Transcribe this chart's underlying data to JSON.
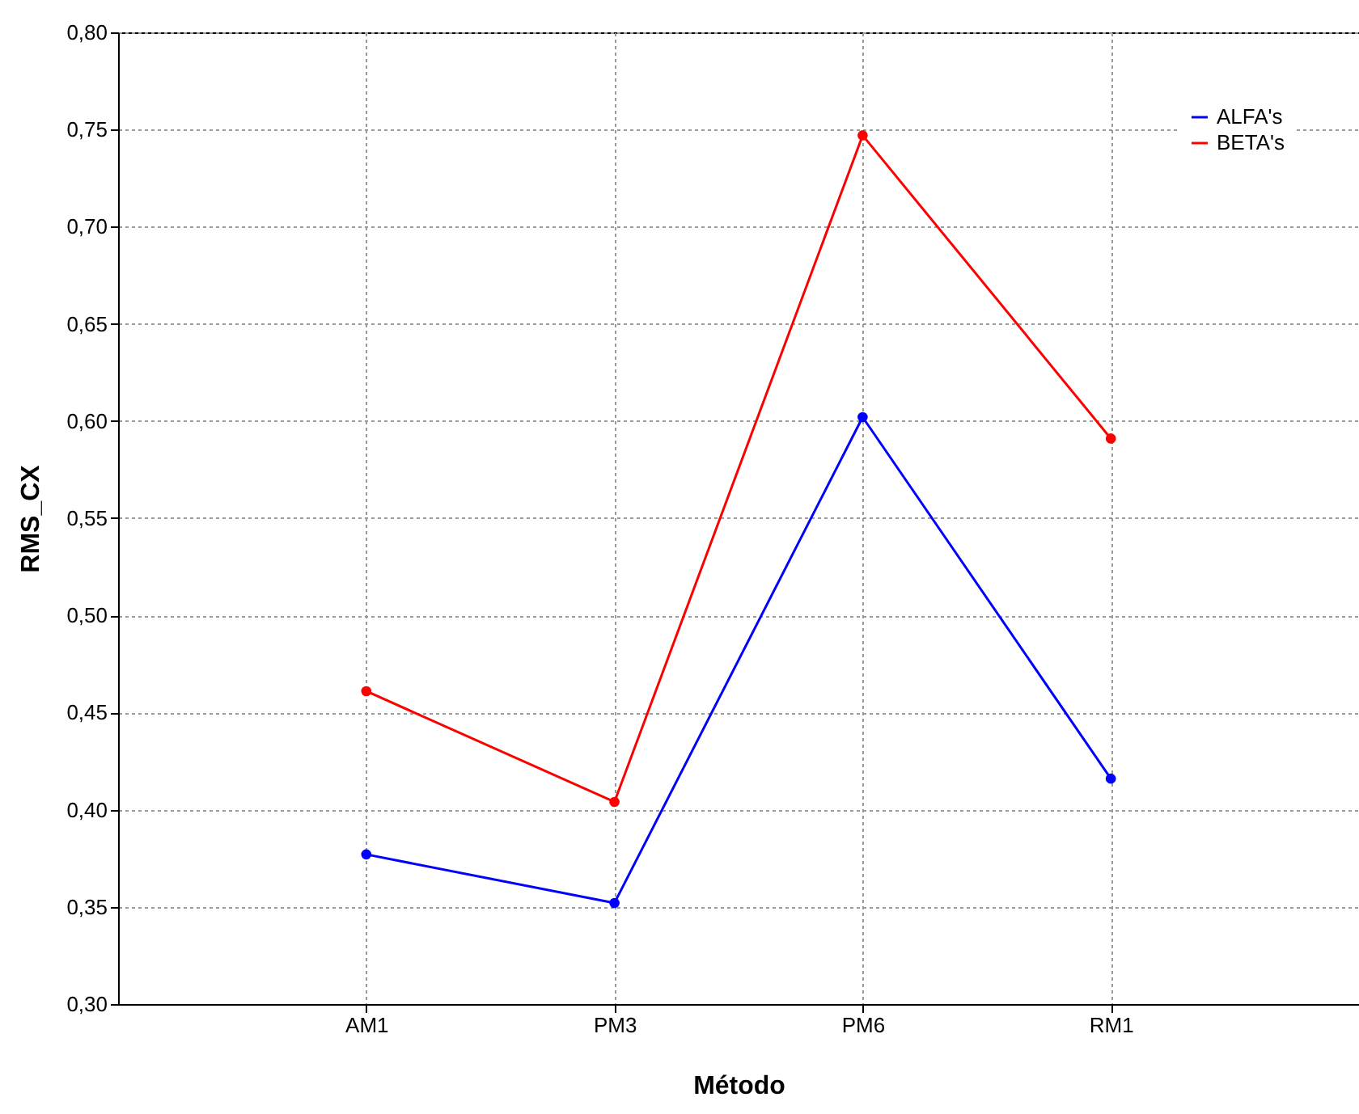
{
  "chart_data": {
    "type": "line",
    "xlabel": "Método",
    "ylabel": "RMS_CX",
    "categories": [
      "AM1",
      "PM3",
      "PM6",
      "RM1"
    ],
    "series": [
      {
        "name": "ALFA's",
        "color": "#0000ff",
        "values": [
          0.377,
          0.352,
          0.602,
          0.416
        ]
      },
      {
        "name": "BETA's",
        "color": "#ff0000",
        "values": [
          0.461,
          0.404,
          0.747,
          0.591
        ]
      }
    ],
    "ylim": [
      0.3,
      0.8
    ],
    "yticks": [
      {
        "value": 0.3,
        "label": "0,30"
      },
      {
        "value": 0.35,
        "label": "0,35"
      },
      {
        "value": 0.4,
        "label": "0,40"
      },
      {
        "value": 0.45,
        "label": "0,45"
      },
      {
        "value": 0.5,
        "label": "0,50"
      },
      {
        "value": 0.55,
        "label": "0,55"
      },
      {
        "value": 0.6,
        "label": "0,60"
      },
      {
        "value": 0.65,
        "label": "0,65"
      },
      {
        "value": 0.7,
        "label": "0,70"
      },
      {
        "value": 0.75,
        "label": "0,75"
      },
      {
        "value": 0.8,
        "label": "0,80"
      }
    ],
    "grid": true,
    "legend": "top right",
    "marker": "circle",
    "line_style": "solid"
  }
}
